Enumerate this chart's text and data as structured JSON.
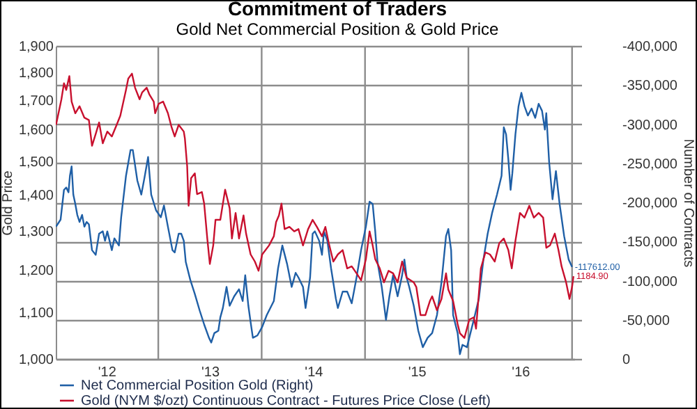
{
  "chart_data": {
    "type": "line",
    "title": "Commitment of Traders",
    "subtitle": "Gold Net Commercial Position & Gold Price",
    "ylabel": "Gold Price",
    "y2label": "Number of Contracts",
    "log": "y",
    "grid": true,
    "legend": "bottom",
    "xlim": [
      "2012-01-05",
      "2017-01-09"
    ],
    "xticks": [
      {
        "value": "2012-07-02",
        "label": "'12"
      },
      {
        "value": "2013-01-01",
        "label": null
      },
      {
        "value": "2013-07-02",
        "label": "'13"
      },
      {
        "value": "2014-01-01",
        "label": null
      },
      {
        "value": "2014-07-02",
        "label": "'14"
      },
      {
        "value": "2015-01-01",
        "label": null
      },
      {
        "value": "2015-07-02",
        "label": "'15"
      },
      {
        "value": "2016-01-01",
        "label": null
      },
      {
        "value": "2016-07-02",
        "label": "'16"
      },
      {
        "value": "2017-01-01",
        "label": null
      }
    ],
    "ylim": [
      1000,
      1900
    ],
    "yticks": [
      {
        "value": 1000,
        "label": "1,000"
      },
      {
        "value": 1100,
        "label": "1,100"
      },
      {
        "value": 1200,
        "label": "1,200"
      },
      {
        "value": 1300,
        "label": "1,300"
      },
      {
        "value": 1400,
        "label": "1,400"
      },
      {
        "value": 1500,
        "label": "1,500"
      },
      {
        "value": 1600,
        "label": "1,600"
      },
      {
        "value": 1700,
        "label": "1,700"
      },
      {
        "value": 1800,
        "label": "1,800"
      },
      {
        "value": 1900,
        "label": "1,900"
      }
    ],
    "y2lim": [
      0,
      -400000
    ],
    "y2ticks": [
      0,
      {
        "value": -50000,
        "label": "-50,000"
      },
      {
        "value": -100000,
        "label": "-100,000"
      },
      {
        "value": -150000,
        "label": "-150,000"
      },
      {
        "value": -200000,
        "label": "-200,000"
      },
      {
        "value": -250000,
        "label": "-250,000"
      },
      {
        "value": -300000,
        "label": "-300,000"
      },
      {
        "value": -350000,
        "label": "-350,000"
      },
      {
        "value": -400000,
        "label": "-400,000"
      }
    ],
    "annotations": [
      "-117612.00",
      "1184.90"
    ],
    "series": [
      {
        "name": "Net Commercial Position Gold (Right)",
        "color": "#1f5fa6",
        "axis": "y2",
        "x": [
          "2012-01-06",
          "2012-01-22",
          "2012-02-03",
          "2012-02-11",
          "2012-02-19",
          "2012-02-24",
          "2012-03-01",
          "2012-03-07",
          "2012-03-14",
          "2012-03-21",
          "2012-03-29",
          "2012-04-07",
          "2012-04-15",
          "2012-04-23",
          "2012-05-01",
          "2012-05-12",
          "2012-05-25",
          "2012-06-06",
          "2012-06-19",
          "2012-06-27",
          "2012-07-05",
          "2012-07-21",
          "2012-07-30",
          "2012-08-15",
          "2012-08-23",
          "2012-09-09",
          "2012-09-25",
          "2012-10-03",
          "2012-10-19",
          "2012-11-02",
          "2012-11-13",
          "2012-11-26",
          "2012-12-07",
          "2012-12-24",
          "2013-01-10",
          "2013-01-21",
          "2013-02-04",
          "2013-02-20",
          "2013-02-28",
          "2013-03-14",
          "2013-03-23",
          "2013-04-01",
          "2013-04-08",
          "2013-04-24",
          "2013-05-10",
          "2013-05-27",
          "2013-06-12",
          "2013-06-29",
          "2013-07-07",
          "2013-07-18",
          "2013-08-01",
          "2013-08-08",
          "2013-08-17",
          "2013-08-30",
          "2013-09-10",
          "2013-09-26",
          "2013-10-13",
          "2013-10-26",
          "2013-11-04",
          "2013-11-15",
          "2013-11-23",
          "2013-12-01",
          "2013-12-17",
          "2014-01-03",
          "2014-01-19",
          "2014-02-13",
          "2014-02-28",
          "2014-03-15",
          "2014-04-01",
          "2014-04-17",
          "2014-05-01",
          "2014-05-11",
          "2014-05-27",
          "2014-06-05",
          "2014-06-21",
          "2014-06-30",
          "2014-07-08",
          "2014-07-23",
          "2014-08-02",
          "2014-08-09",
          "2014-08-21",
          "2014-09-03",
          "2014-09-20",
          "2014-09-27",
          "2014-10-14",
          "2014-10-30",
          "2014-11-15",
          "2014-12-02",
          "2014-12-18",
          "2015-01-04",
          "2015-01-17",
          "2015-01-28",
          "2015-02-06",
          "2015-02-14",
          "2015-03-01",
          "2015-03-16",
          "2015-03-28",
          "2015-04-10",
          "2015-04-26",
          "2015-05-12",
          "2015-05-20",
          "2015-05-28",
          "2015-06-06",
          "2015-06-22",
          "2015-07-08",
          "2015-07-24",
          "2015-08-10",
          "2015-08-26",
          "2015-09-12",
          "2015-09-28",
          "2015-10-14",
          "2015-10-22",
          "2015-11-01",
          "2015-11-08",
          "2015-11-24",
          "2015-12-02",
          "2015-12-11",
          "2015-12-27",
          "2016-01-04",
          "2016-01-20",
          "2016-02-07",
          "2016-02-23",
          "2016-03-09",
          "2016-03-25",
          "2016-04-11",
          "2016-04-27",
          "2016-05-05",
          "2016-05-13",
          "2016-05-21",
          "2016-05-29",
          "2016-06-04",
          "2016-06-15",
          "2016-06-26",
          "2016-07-06",
          "2016-07-17",
          "2016-07-29",
          "2016-08-11",
          "2016-08-24",
          "2016-09-05",
          "2016-09-17",
          "2016-09-27",
          "2016-10-02",
          "2016-10-12",
          "2016-10-24",
          "2016-11-05",
          "2016-11-18",
          "2016-12-04",
          "2016-12-20",
          "2017-01-01"
        ],
        "values": [
          -169000,
          -178000,
          -216000,
          -219000,
          -213000,
          -234000,
          -246000,
          -210000,
          -198000,
          -184000,
          -175000,
          -184000,
          -169000,
          -175000,
          -172000,
          -139000,
          -133000,
          -160000,
          -163000,
          -151000,
          -163000,
          -139000,
          -154000,
          -145000,
          -181000,
          -234000,
          -267000,
          -267000,
          -228000,
          -210000,
          -231000,
          -258000,
          -210000,
          -190000,
          -181000,
          -196000,
          -169000,
          -139000,
          -136000,
          -160000,
          -160000,
          -151000,
          -124000,
          -101000,
          -83000,
          -62000,
          -44000,
          -27000,
          -21000,
          -33000,
          -36000,
          -53000,
          -65000,
          -92000,
          -68000,
          -80000,
          -89000,
          -74000,
          -107000,
          -68000,
          -47000,
          -27000,
          -30000,
          -41000,
          -56000,
          -74000,
          -116000,
          -145000,
          -121000,
          -92000,
          -110000,
          -104000,
          -92000,
          -65000,
          -104000,
          -160000,
          -163000,
          -151000,
          -133000,
          -163000,
          -151000,
          -116000,
          -77000,
          -65000,
          -86000,
          -86000,
          -71000,
          -104000,
          -139000,
          -169000,
          -201000,
          -198000,
          -163000,
          -124000,
          -92000,
          -50000,
          -80000,
          -107000,
          -80000,
          -107000,
          -127000,
          -104000,
          -92000,
          -68000,
          -36000,
          -15000,
          -27000,
          -33000,
          -56000,
          -98000,
          -157000,
          -166000,
          -139000,
          -56000,
          -33000,
          -6000,
          -18000,
          -15000,
          -27000,
          -50000,
          -77000,
          -127000,
          -160000,
          -187000,
          -210000,
          -234000,
          -296000,
          -287000,
          -255000,
          -216000,
          -237000,
          -287000,
          -323000,
          -340000,
          -323000,
          -311000,
          -320000,
          -308000,
          -326000,
          -317000,
          -293000,
          -314000,
          -252000,
          -204000,
          -240000,
          -198000,
          -157000,
          -127000,
          -117612
        ]
      },
      {
        "name": "Gold (NYM $/ozt) Continuous Contract - Futures Price Close  (Left)",
        "color": "#c8102e",
        "x": [
          "2012-01-06",
          "2012-01-25",
          "2012-02-03",
          "2012-02-11",
          "2012-02-22",
          "2012-03-01",
          "2012-03-14",
          "2012-03-29",
          "2012-04-15",
          "2012-05-01",
          "2012-05-12",
          "2012-05-25",
          "2012-06-06",
          "2012-06-19",
          "2012-07-05",
          "2012-07-21",
          "2012-08-07",
          "2012-08-20",
          "2012-09-09",
          "2012-09-17",
          "2012-09-30",
          "2012-10-11",
          "2012-10-27",
          "2012-11-05",
          "2012-11-21",
          "2012-12-01",
          "2012-12-16",
          "2012-12-21",
          "2013-01-02",
          "2013-01-18",
          "2013-02-04",
          "2013-02-17",
          "2013-02-28",
          "2013-03-14",
          "2013-04-01",
          "2013-04-05",
          "2013-04-13",
          "2013-04-18",
          "2013-04-27",
          "2013-05-10",
          "2013-05-18",
          "2013-06-04",
          "2013-06-12",
          "2013-06-23",
          "2013-07-02",
          "2013-07-14",
          "2013-07-22",
          "2013-08-08",
          "2013-08-25",
          "2013-09-10",
          "2013-09-18",
          "2013-10-01",
          "2013-10-13",
          "2013-10-29",
          "2013-11-07",
          "2013-11-23",
          "2013-12-08",
          "2013-12-21",
          "2014-01-03",
          "2014-01-27",
          "2014-02-13",
          "2014-02-21",
          "2014-03-03",
          "2014-03-12",
          "2014-03-23",
          "2014-04-09",
          "2014-04-26",
          "2014-05-11",
          "2014-05-27",
          "2014-06-14",
          "2014-06-30",
          "2014-07-15",
          "2014-08-02",
          "2014-08-14",
          "2014-08-26",
          "2014-09-11",
          "2014-09-27",
          "2014-10-14",
          "2014-10-30",
          "2014-11-15",
          "2014-12-02",
          "2014-12-18",
          "2015-01-04",
          "2015-01-17",
          "2015-01-28",
          "2015-02-06",
          "2015-02-22",
          "2015-03-09",
          "2015-03-25",
          "2015-04-10",
          "2015-04-26",
          "2015-05-12",
          "2015-05-28",
          "2015-06-22",
          "2015-07-01",
          "2015-07-16",
          "2015-08-02",
          "2015-08-18",
          "2015-08-26",
          "2015-09-12",
          "2015-09-28",
          "2015-10-14",
          "2015-10-22",
          "2015-11-08",
          "2015-11-24",
          "2015-12-02",
          "2015-12-18",
          "2016-01-04",
          "2016-01-20",
          "2016-01-28",
          "2016-02-14",
          "2016-03-01",
          "2016-03-17",
          "2016-04-03",
          "2016-04-19",
          "2016-05-05",
          "2016-05-21",
          "2016-06-02",
          "2016-06-15",
          "2016-07-01",
          "2016-07-17",
          "2016-08-03",
          "2016-08-19",
          "2016-09-05",
          "2016-09-21",
          "2016-10-02",
          "2016-10-15",
          "2016-11-01",
          "2016-11-14",
          "2016-11-25",
          "2016-12-11",
          "2016-12-23",
          "2017-01-01",
          "2017-01-06"
        ],
        "values": [
          1616,
          1703,
          1760,
          1736,
          1786,
          1695,
          1655,
          1679,
          1640,
          1632,
          1548,
          1586,
          1624,
          1556,
          1594,
          1578,
          1616,
          1647,
          1736,
          1777,
          1795,
          1744,
          1703,
          1727,
          1744,
          1719,
          1695,
          1655,
          1687,
          1695,
          1655,
          1608,
          1578,
          1616,
          1594,
          1571,
          1484,
          1369,
          1449,
          1463,
          1402,
          1408,
          1375,
          1280,
          1215,
          1262,
          1330,
          1330,
          1415,
          1362,
          1280,
          1349,
          1280,
          1342,
          1293,
          1239,
          1221,
          1198,
          1239,
          1262,
          1286,
          1324,
          1342,
          1375,
          1305,
          1311,
          1299,
          1305,
          1262,
          1305,
          1330,
          1311,
          1286,
          1311,
          1268,
          1221,
          1239,
          1250,
          1204,
          1209,
          1192,
          1175,
          1227,
          1299,
          1262,
          1227,
          1204,
          1170,
          1198,
          1192,
          1170,
          1221,
          1181,
          1170,
          1159,
          1094,
          1094,
          1126,
          1137,
          1105,
          1131,
          1192,
          1153,
          1126,
          1074,
          1054,
          1044,
          1084,
          1089,
          1064,
          1204,
          1244,
          1239,
          1221,
          1268,
          1280,
          1250,
          1204,
          1274,
          1349,
          1336,
          1369,
          1336,
          1349,
          1336,
          1256,
          1262,
          1293,
          1250,
          1209,
          1170,
          1131,
          1159,
          1184.9
        ]
      }
    ]
  }
}
